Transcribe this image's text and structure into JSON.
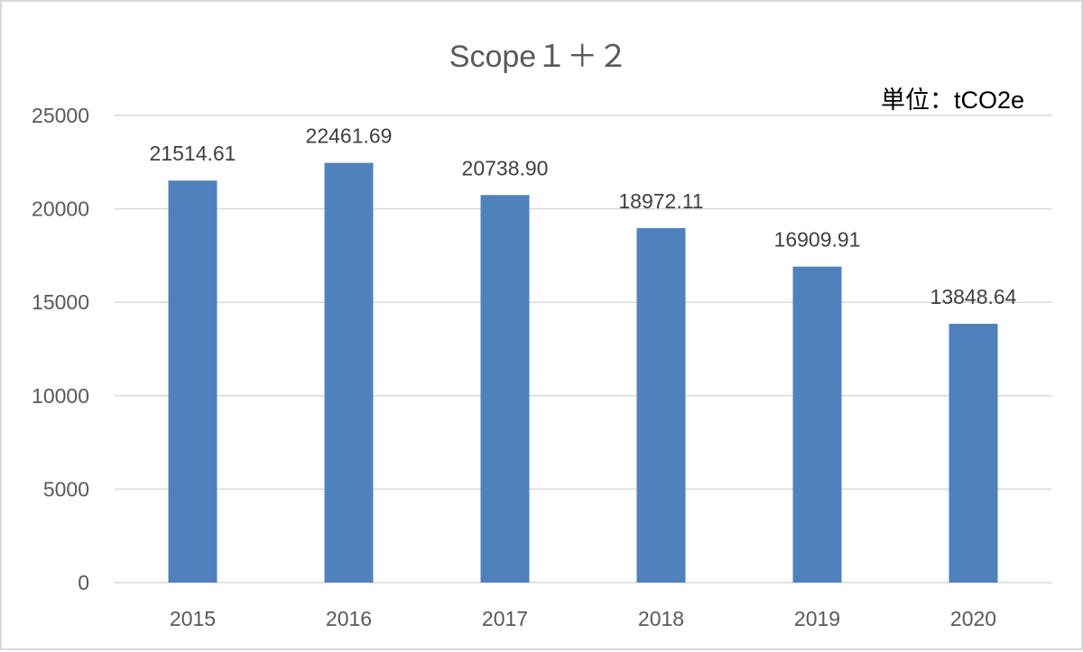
{
  "chart_data": {
    "type": "bar",
    "title": "Scope１＋２",
    "unit_label": "単位：tCO2e",
    "categories": [
      "2015",
      "2016",
      "2017",
      "2018",
      "2019",
      "2020"
    ],
    "values": [
      21514.61,
      22461.69,
      20738.9,
      18972.11,
      16909.91,
      13848.64
    ],
    "value_labels": [
      "21514.61",
      "22461.69",
      "20738.90",
      "18972.11",
      "16909.91",
      "13848.64"
    ],
    "ylim": [
      0,
      25000
    ],
    "yticks": [
      "0",
      "5000",
      "10000",
      "15000",
      "20000",
      "25000"
    ],
    "xlabel": "",
    "ylabel": "",
    "grid": true,
    "legend": "none",
    "bar_color": "#4f81bd"
  }
}
